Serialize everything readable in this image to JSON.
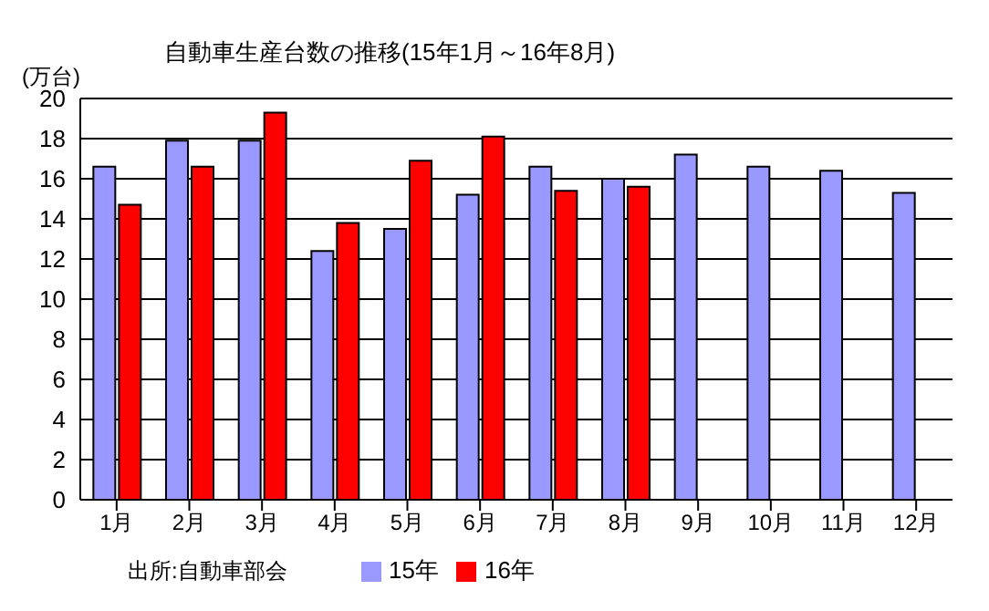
{
  "chart_data": {
    "type": "bar",
    "title": "自動車生産台数の推移(15年1月～16年8月)",
    "ylabel": "(万台)",
    "categories": [
      "1月",
      "2月",
      "3月",
      "4月",
      "5月",
      "6月",
      "7月",
      "8月",
      "9月",
      "10月",
      "11月",
      "12月"
    ],
    "series": [
      {
        "name": "15年",
        "color": "#9999ff",
        "values": [
          16.6,
          17.9,
          17.9,
          12.4,
          13.5,
          15.2,
          16.6,
          16.0,
          17.2,
          16.6,
          16.4,
          15.3
        ]
      },
      {
        "name": "16年",
        "color": "#ff0000",
        "values": [
          14.7,
          16.6,
          19.3,
          13.8,
          16.9,
          18.1,
          15.4,
          15.6,
          null,
          null,
          null,
          null
        ]
      }
    ],
    "ylim": [
      0,
      20
    ],
    "yticks": [
      0,
      2,
      4,
      6,
      8,
      10,
      12,
      14,
      16,
      18,
      20
    ],
    "grid": "y",
    "legend": "bottom",
    "annotations": [
      "出所:自動車部会"
    ]
  }
}
